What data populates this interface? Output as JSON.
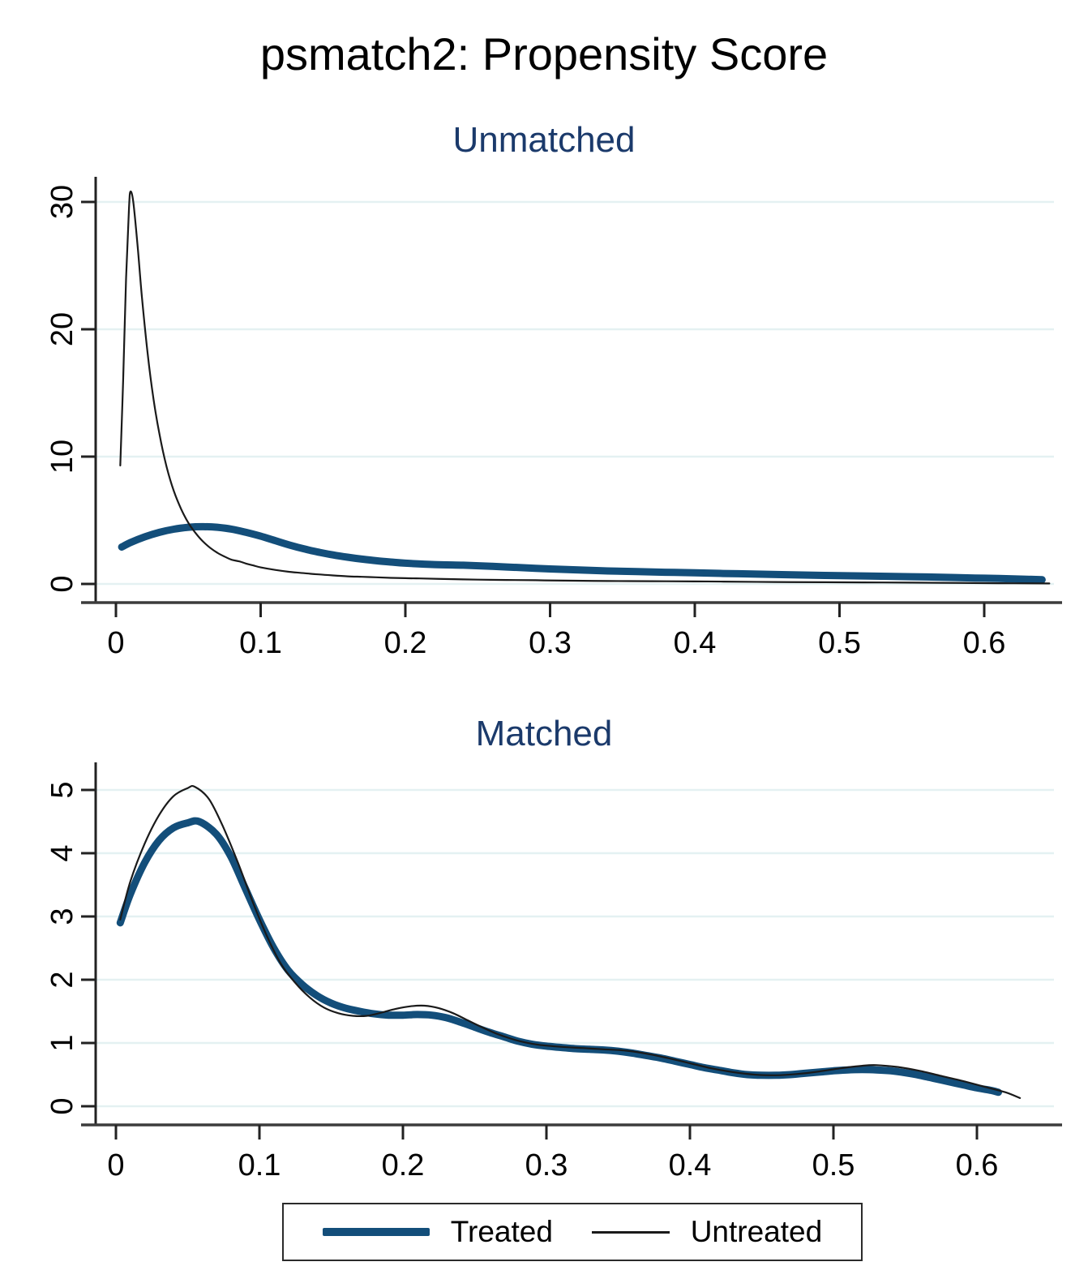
{
  "figure": {
    "title": "psmatch2: Propensity Score",
    "colors": {
      "treated": "#134e7a",
      "untreated": "#1a1a1a",
      "subtitle": "#1b3a6b",
      "gridline": "#e4f1f2",
      "axis": "#3c3c3c",
      "tick": "#222222"
    },
    "legend": {
      "treated_label": "Treated",
      "untreated_label": "Untreated"
    }
  },
  "chart_data": [
    {
      "type": "line",
      "panel": "unmatched",
      "title": "Unmatched",
      "xlabel": "",
      "ylabel": "",
      "xlim": [
        0,
        0.65
      ],
      "ylim": [
        0,
        32
      ],
      "grid": true,
      "legend_position": "bottom-shared",
      "x_ticks": {
        "values": [
          0,
          0.1,
          0.2,
          0.3,
          0.4,
          0.5,
          0.6
        ],
        "labels": [
          "0",
          "0.1",
          "0.2",
          "0.3",
          "0.4",
          "0.5",
          "0.6"
        ]
      },
      "y_ticks": {
        "values": [
          0,
          10,
          20,
          30
        ],
        "labels": [
          "0",
          "10",
          "20",
          "30"
        ]
      },
      "series": [
        {
          "name": "Treated",
          "color": "#134e7a",
          "stroke_width": 9,
          "points": [
            [
              0.004,
              2.9
            ],
            [
              0.01,
              3.25
            ],
            [
              0.02,
              3.7
            ],
            [
              0.03,
              4.05
            ],
            [
              0.04,
              4.3
            ],
            [
              0.05,
              4.45
            ],
            [
              0.06,
              4.5
            ],
            [
              0.07,
              4.45
            ],
            [
              0.08,
              4.3
            ],
            [
              0.09,
              4.05
            ],
            [
              0.1,
              3.75
            ],
            [
              0.11,
              3.4
            ],
            [
              0.12,
              3.05
            ],
            [
              0.13,
              2.75
            ],
            [
              0.14,
              2.5
            ],
            [
              0.15,
              2.28
            ],
            [
              0.16,
              2.1
            ],
            [
              0.17,
              1.95
            ],
            [
              0.18,
              1.82
            ],
            [
              0.19,
              1.72
            ],
            [
              0.2,
              1.63
            ],
            [
              0.22,
              1.52
            ],
            [
              0.24,
              1.47
            ],
            [
              0.26,
              1.38
            ],
            [
              0.28,
              1.28
            ],
            [
              0.3,
              1.18
            ],
            [
              0.32,
              1.1
            ],
            [
              0.34,
              1.02
            ],
            [
              0.36,
              0.97
            ],
            [
              0.38,
              0.92
            ],
            [
              0.4,
              0.87
            ],
            [
              0.43,
              0.8
            ],
            [
              0.46,
              0.73
            ],
            [
              0.49,
              0.67
            ],
            [
              0.52,
              0.62
            ],
            [
              0.55,
              0.57
            ],
            [
              0.58,
              0.5
            ],
            [
              0.6,
              0.45
            ],
            [
              0.62,
              0.4
            ],
            [
              0.64,
              0.33
            ]
          ]
        },
        {
          "name": "Untreated",
          "color": "#1a1a1a",
          "stroke_width": 2.2,
          "points": [
            [
              0.003,
              9.3
            ],
            [
              0.005,
              16
            ],
            [
              0.007,
              24
            ],
            [
              0.009,
              29.5
            ],
            [
              0.01,
              30.8
            ],
            [
              0.012,
              30
            ],
            [
              0.015,
              26.5
            ],
            [
              0.018,
              22.5
            ],
            [
              0.022,
              18
            ],
            [
              0.026,
              14.5
            ],
            [
              0.03,
              11.8
            ],
            [
              0.035,
              9.2
            ],
            [
              0.04,
              7.3
            ],
            [
              0.045,
              5.9
            ],
            [
              0.05,
              4.8
            ],
            [
              0.055,
              4.0
            ],
            [
              0.06,
              3.35
            ],
            [
              0.065,
              2.85
            ],
            [
              0.07,
              2.45
            ],
            [
              0.075,
              2.15
            ],
            [
              0.08,
              1.9
            ],
            [
              0.085,
              1.78
            ],
            [
              0.09,
              1.6
            ],
            [
              0.095,
              1.45
            ],
            [
              0.1,
              1.3
            ],
            [
              0.11,
              1.1
            ],
            [
              0.12,
              0.95
            ],
            [
              0.13,
              0.85
            ],
            [
              0.14,
              0.75
            ],
            [
              0.15,
              0.67
            ],
            [
              0.16,
              0.6
            ],
            [
              0.17,
              0.56
            ],
            [
              0.18,
              0.52
            ],
            [
              0.19,
              0.48
            ],
            [
              0.2,
              0.45
            ],
            [
              0.21,
              0.43
            ],
            [
              0.23,
              0.38
            ],
            [
              0.25,
              0.34
            ],
            [
              0.27,
              0.31
            ],
            [
              0.29,
              0.29
            ],
            [
              0.31,
              0.26
            ],
            [
              0.34,
              0.23
            ],
            [
              0.37,
              0.215
            ],
            [
              0.4,
              0.2
            ],
            [
              0.42,
              0.185
            ],
            [
              0.455,
              0.15
            ],
            [
              0.49,
              0.135
            ],
            [
              0.53,
              0.115
            ],
            [
              0.57,
              0.09
            ],
            [
              0.61,
              0.06
            ],
            [
              0.645,
              0.04
            ]
          ]
        }
      ]
    },
    {
      "type": "line",
      "panel": "matched",
      "title": "Matched",
      "xlabel": "",
      "ylabel": "",
      "xlim": [
        0,
        0.65
      ],
      "ylim": [
        0,
        5.4
      ],
      "grid": true,
      "legend_position": "bottom-shared",
      "x_ticks": {
        "values": [
          0,
          0.1,
          0.2,
          0.3,
          0.4,
          0.5,
          0.6
        ],
        "labels": [
          "0",
          "0.1",
          "0.2",
          "0.3",
          "0.4",
          "0.5",
          "0.6"
        ]
      },
      "y_ticks": {
        "values": [
          0,
          1,
          2,
          3,
          4,
          5
        ],
        "labels": [
          "0",
          "1",
          "2",
          "3",
          "4",
          "5"
        ]
      },
      "series": [
        {
          "name": "Treated",
          "color": "#134e7a",
          "stroke_width": 9,
          "points": [
            [
              0.003,
              2.9
            ],
            [
              0.01,
              3.35
            ],
            [
              0.02,
              3.85
            ],
            [
              0.03,
              4.2
            ],
            [
              0.04,
              4.4
            ],
            [
              0.05,
              4.48
            ],
            [
              0.058,
              4.5
            ],
            [
              0.07,
              4.3
            ],
            [
              0.08,
              3.95
            ],
            [
              0.09,
              3.45
            ],
            [
              0.1,
              2.95
            ],
            [
              0.11,
              2.5
            ],
            [
              0.12,
              2.15
            ],
            [
              0.13,
              1.92
            ],
            [
              0.14,
              1.75
            ],
            [
              0.15,
              1.63
            ],
            [
              0.16,
              1.55
            ],
            [
              0.17,
              1.5
            ],
            [
              0.18,
              1.46
            ],
            [
              0.19,
              1.44
            ],
            [
              0.2,
              1.44
            ],
            [
              0.21,
              1.45
            ],
            [
              0.22,
              1.44
            ],
            [
              0.23,
              1.4
            ],
            [
              0.24,
              1.33
            ],
            [
              0.25,
              1.25
            ],
            [
              0.26,
              1.17
            ],
            [
              0.27,
              1.1
            ],
            [
              0.28,
              1.03
            ],
            [
              0.29,
              0.98
            ],
            [
              0.3,
              0.95
            ],
            [
              0.31,
              0.93
            ],
            [
              0.32,
              0.91
            ],
            [
              0.33,
              0.9
            ],
            [
              0.34,
              0.89
            ],
            [
              0.35,
              0.87
            ],
            [
              0.36,
              0.84
            ],
            [
              0.37,
              0.8
            ],
            [
              0.38,
              0.76
            ],
            [
              0.39,
              0.71
            ],
            [
              0.4,
              0.66
            ],
            [
              0.41,
              0.61
            ],
            [
              0.42,
              0.57
            ],
            [
              0.43,
              0.53
            ],
            [
              0.44,
              0.5
            ],
            [
              0.45,
              0.49
            ],
            [
              0.46,
              0.49
            ],
            [
              0.47,
              0.5
            ],
            [
              0.48,
              0.52
            ],
            [
              0.49,
              0.54
            ],
            [
              0.5,
              0.56
            ],
            [
              0.51,
              0.575
            ],
            [
              0.52,
              0.58
            ],
            [
              0.53,
              0.575
            ],
            [
              0.54,
              0.56
            ],
            [
              0.55,
              0.53
            ],
            [
              0.56,
              0.49
            ],
            [
              0.57,
              0.44
            ],
            [
              0.58,
              0.39
            ],
            [
              0.59,
              0.34
            ],
            [
              0.6,
              0.29
            ],
            [
              0.61,
              0.25
            ],
            [
              0.615,
              0.22
            ]
          ]
        },
        {
          "name": "Untreated",
          "color": "#1a1a1a",
          "stroke_width": 2.2,
          "points": [
            [
              0.003,
              2.95
            ],
            [
              0.01,
              3.55
            ],
            [
              0.02,
              4.15
            ],
            [
              0.03,
              4.6
            ],
            [
              0.04,
              4.9
            ],
            [
              0.05,
              5.03
            ],
            [
              0.055,
              5.05
            ],
            [
              0.065,
              4.85
            ],
            [
              0.075,
              4.4
            ],
            [
              0.085,
              3.85
            ],
            [
              0.095,
              3.25
            ],
            [
              0.105,
              2.7
            ],
            [
              0.115,
              2.25
            ],
            [
              0.125,
              1.95
            ],
            [
              0.135,
              1.72
            ],
            [
              0.145,
              1.56
            ],
            [
              0.155,
              1.47
            ],
            [
              0.165,
              1.43
            ],
            [
              0.175,
              1.43
            ],
            [
              0.185,
              1.48
            ],
            [
              0.195,
              1.54
            ],
            [
              0.205,
              1.58
            ],
            [
              0.215,
              1.59
            ],
            [
              0.225,
              1.55
            ],
            [
              0.235,
              1.47
            ],
            [
              0.245,
              1.36
            ],
            [
              0.255,
              1.25
            ],
            [
              0.265,
              1.15
            ],
            [
              0.275,
              1.07
            ],
            [
              0.285,
              1.01
            ],
            [
              0.295,
              0.97
            ],
            [
              0.31,
              0.94
            ],
            [
              0.325,
              0.92
            ],
            [
              0.34,
              0.9
            ],
            [
              0.355,
              0.88
            ],
            [
              0.37,
              0.83
            ],
            [
              0.385,
              0.76
            ],
            [
              0.4,
              0.68
            ],
            [
              0.415,
              0.6
            ],
            [
              0.43,
              0.54
            ],
            [
              0.445,
              0.5
            ],
            [
              0.46,
              0.49
            ],
            [
              0.475,
              0.51
            ],
            [
              0.49,
              0.55
            ],
            [
              0.505,
              0.6
            ],
            [
              0.52,
              0.64
            ],
            [
              0.53,
              0.65
            ],
            [
              0.545,
              0.62
            ],
            [
              0.56,
              0.56
            ],
            [
              0.575,
              0.48
            ],
            [
              0.59,
              0.4
            ],
            [
              0.605,
              0.31
            ],
            [
              0.62,
              0.22
            ],
            [
              0.63,
              0.13
            ]
          ]
        }
      ]
    }
  ]
}
